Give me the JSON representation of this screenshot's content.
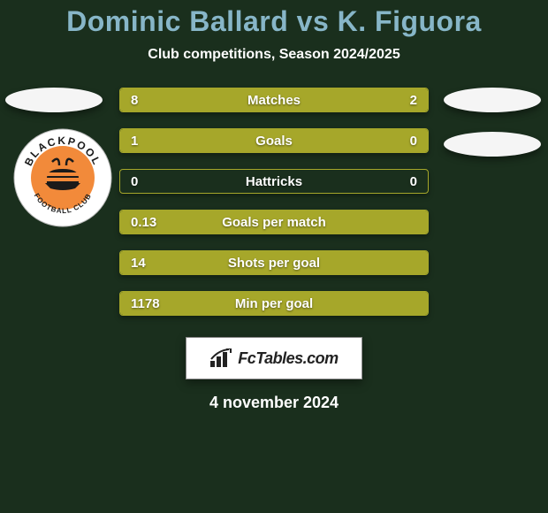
{
  "title": {
    "text": "Dominic Ballard vs K. Figuora",
    "color": "#87b6c8",
    "fontsize": 32
  },
  "subtitle": {
    "text": "Club competitions, Season 2024/2025",
    "fontsize": 16
  },
  "background_color": "#1a2f1d",
  "bar_color": "#a6a72a",
  "bar_border_color": "#a6a72a",
  "label_fontsize": 15,
  "value_fontsize": 15,
  "stats": [
    {
      "label": "Matches",
      "left_val": "8",
      "right_val": "2",
      "left_pct": 80,
      "right_pct": 20
    },
    {
      "label": "Goals",
      "left_val": "1",
      "right_val": "0",
      "left_pct": 100,
      "right_pct": 0
    },
    {
      "label": "Hattricks",
      "left_val": "0",
      "right_val": "0",
      "left_pct": 0,
      "right_pct": 0
    },
    {
      "label": "Goals per match",
      "left_val": "0.13",
      "right_val": "",
      "left_pct": 100,
      "right_pct": 0
    },
    {
      "label": "Shots per goal",
      "left_val": "14",
      "right_val": "",
      "left_pct": 100,
      "right_pct": 0
    },
    {
      "label": "Min per goal",
      "left_val": "1178",
      "right_val": "",
      "left_pct": 100,
      "right_pct": 0
    }
  ],
  "branding": {
    "text_prefix": "Fc",
    "text_main": "Tables",
    "text_suffix": ".com",
    "fontsize": 18
  },
  "date": {
    "text": "4 november 2024",
    "fontsize": 18
  },
  "club_badge": {
    "name": "BLACKPOOL",
    "sub": "FOOTBALL CLUB",
    "ring_color": "#ffffff",
    "inner_color": "#f28a3a",
    "text_color": "#1a1a1a"
  }
}
